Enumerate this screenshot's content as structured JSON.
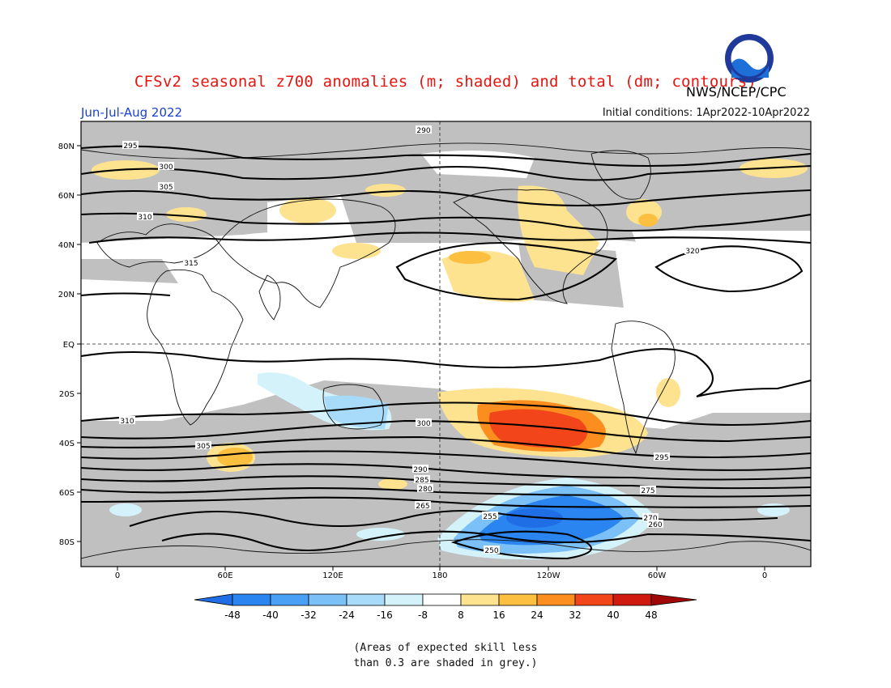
{
  "header": {
    "title": "CFSv2 seasonal z700 anomalies (m; shaded) and total (dm; contours)",
    "agency": "NWS/NCEP/CPC",
    "season": "Jun-Jul-Aug 2022",
    "initial_conditions": "Initial conditions: 1Apr2022-10Apr2022",
    "logo_text": "NOAA"
  },
  "map": {
    "lat_labels": [
      "80N",
      "60N",
      "40N",
      "20N",
      "EQ",
      "20S",
      "40S",
      "60S",
      "80S"
    ],
    "lon_labels": [
      "0",
      "60E",
      "120E",
      "180",
      "120W",
      "60W",
      "0"
    ],
    "contour_labels": [
      "290",
      "295",
      "300",
      "305",
      "310",
      "315",
      "320",
      "310",
      "305",
      "300",
      "295",
      "290",
      "285",
      "280",
      "275",
      "270",
      "265",
      "260",
      "255",
      "250"
    ]
  },
  "colorbar": {
    "ticks": [
      "-48",
      "-40",
      "-32",
      "-24",
      "-16",
      "-8",
      "8",
      "16",
      "24",
      "32",
      "40",
      "48"
    ],
    "colors": [
      "#1f6ee6",
      "#2a85f0",
      "#4aa0f5",
      "#7cc0f8",
      "#a8dafa",
      "#d4f2fa",
      "#ffffff",
      "#fde28f",
      "#fdbf3f",
      "#fb8e1e",
      "#f2451a",
      "#d01a10",
      "#a00808"
    ]
  },
  "footnote": {
    "line1": "(Areas of expected skill less",
    "line2": "than 0.3 are shaded in grey.)"
  }
}
